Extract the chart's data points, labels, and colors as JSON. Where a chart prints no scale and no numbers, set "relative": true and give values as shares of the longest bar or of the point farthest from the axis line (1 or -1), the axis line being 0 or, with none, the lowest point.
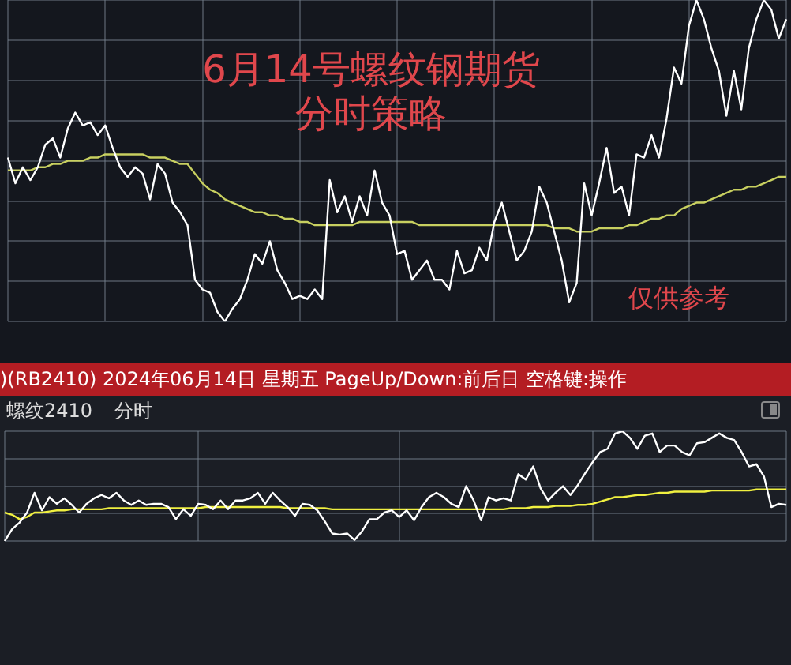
{
  "chart_data": [
    {
      "type": "line",
      "title": "6月14号螺纹钢期货",
      "subtitle": "分时策略",
      "annotations": [
        "仅供参考"
      ],
      "relative": true,
      "grid": true,
      "legend": false,
      "marker": "none",
      "categories": [
        null,
        null,
        null,
        null,
        null,
        null,
        null,
        null,
        null,
        null,
        null,
        null,
        null,
        null,
        null,
        null,
        null,
        null,
        null,
        null,
        null,
        null,
        null,
        null,
        null,
        null,
        null,
        null,
        null,
        null,
        null,
        null,
        null,
        null,
        null,
        null,
        null,
        null,
        null,
        null,
        null,
        null,
        null,
        null,
        null,
        null,
        null,
        null,
        null,
        null,
        null,
        null,
        null,
        null,
        null,
        null,
        null,
        null,
        null,
        null,
        null,
        null,
        null,
        null,
        null,
        null,
        null,
        null,
        null,
        null,
        null,
        null,
        null,
        null,
        null,
        null,
        null,
        null,
        null,
        null,
        null,
        null,
        null,
        null,
        null,
        null,
        null,
        null,
        null,
        null,
        null,
        null,
        null,
        null,
        null,
        null,
        null,
        null,
        null,
        null,
        null,
        null,
        null,
        null,
        null
      ],
      "series": [
        {
          "color": "#ffffff",
          "values": [
            0.51,
            0.43,
            0.48,
            0.44,
            0.48,
            0.55,
            0.57,
            0.51,
            0.6,
            0.65,
            0.61,
            0.62,
            0.58,
            0.61,
            0.54,
            0.48,
            0.45,
            0.48,
            0.46,
            0.38,
            0.49,
            0.46,
            0.37,
            0.34,
            0.3,
            0.13,
            0.1,
            0.09,
            0.03,
            0,
            0.04,
            0.07,
            0.13,
            0.21,
            0.18,
            0.25,
            0.16,
            0.12,
            0.07,
            0.08,
            0.07,
            0.1,
            0.07,
            0.44,
            0.34,
            0.39,
            0.31,
            0.39,
            0.33,
            0.47,
            0.37,
            0.33,
            0.21,
            0.22,
            0.13,
            0.16,
            0.19,
            0.13,
            0.13,
            0.1,
            0.22,
            0.15,
            0.16,
            0.23,
            0.19,
            0.31,
            0.37,
            0.28,
            0.19,
            0.22,
            0.28,
            0.42,
            0.37,
            0.28,
            0.19,
            0.06,
            0.12,
            0.43,
            0.33,
            0.43,
            0.54,
            0.4,
            0.42,
            0.33,
            0.52,
            0.51,
            0.58,
            0.51,
            0.63,
            0.79,
            0.74,
            0.92,
            1,
            0.94,
            0.85,
            0.78,
            0.64,
            0.78,
            0.66,
            0.85,
            0.94,
            1,
            0.97,
            0.88,
            0.94
          ]
        },
        {
          "color": "#c8d060",
          "values": [
            0.47,
            0.47,
            0.47,
            0.47,
            0.48,
            0.48,
            0.49,
            0.49,
            0.5,
            0.5,
            0.5,
            0.51,
            0.51,
            0.52,
            0.52,
            0.52,
            0.52,
            0.52,
            0.52,
            0.51,
            0.51,
            0.51,
            0.5,
            0.49,
            0.49,
            0.46,
            0.43,
            0.41,
            0.4,
            0.38,
            0.37,
            0.36,
            0.35,
            0.34,
            0.34,
            0.33,
            0.33,
            0.32,
            0.32,
            0.31,
            0.31,
            0.3,
            0.3,
            0.3,
            0.3,
            0.3,
            0.3,
            0.31,
            0.31,
            0.31,
            0.31,
            0.31,
            0.31,
            0.31,
            0.31,
            0.3,
            0.3,
            0.3,
            0.3,
            0.3,
            0.3,
            0.3,
            0.3,
            0.3,
            0.3,
            0.3,
            0.3,
            0.3,
            0.3,
            0.3,
            0.3,
            0.3,
            0.3,
            0.29,
            0.29,
            0.29,
            0.28,
            0.28,
            0.28,
            0.29,
            0.29,
            0.29,
            0.29,
            0.3,
            0.3,
            0.31,
            0.32,
            0.32,
            0.33,
            0.33,
            0.35,
            0.36,
            0.37,
            0.37,
            0.38,
            0.39,
            0.4,
            0.41,
            0.41,
            0.42,
            0.42,
            0.43,
            0.44,
            0.45,
            0.45
          ]
        }
      ]
    },
    {
      "type": "line",
      "title": "螺纹2410",
      "subtitle": "分时",
      "annotations": [
        ")(RB2410) 2024年06月14日 星期五 PageUp/Down:前后日 空格键:操作"
      ],
      "relative": true,
      "grid": true,
      "legend": false,
      "marker": "none",
      "categories": [
        null,
        null,
        null,
        null,
        null,
        null,
        null,
        null,
        null,
        null,
        null,
        null,
        null,
        null,
        null,
        null,
        null,
        null,
        null,
        null,
        null,
        null,
        null,
        null,
        null,
        null,
        null,
        null,
        null,
        null,
        null,
        null,
        null,
        null,
        null,
        null,
        null,
        null,
        null,
        null,
        null,
        null,
        null,
        null,
        null,
        null,
        null,
        null,
        null,
        null,
        null,
        null,
        null,
        null,
        null,
        null,
        null,
        null,
        null,
        null,
        null,
        null,
        null,
        null,
        null,
        null,
        null,
        null,
        null,
        null,
        null,
        null,
        null,
        null,
        null,
        null,
        null,
        null,
        null,
        null,
        null,
        null,
        null,
        null,
        null,
        null,
        null,
        null,
        null,
        null,
        null,
        null,
        null,
        null,
        null,
        null,
        null,
        null,
        null,
        null,
        null,
        null,
        null,
        null,
        null,
        null
      ],
      "series": [
        {
          "color": "#ffffff",
          "values": [
            0,
            0.11,
            0.17,
            0.26,
            0.44,
            0.28,
            0.4,
            0.34,
            0.39,
            0.33,
            0.26,
            0.34,
            0.39,
            0.42,
            0.39,
            0.44,
            0.37,
            0.33,
            0.37,
            0.33,
            0.34,
            0.34,
            0.31,
            0.2,
            0.29,
            0.23,
            0.34,
            0.33,
            0.29,
            0.37,
            0.29,
            0.37,
            0.37,
            0.39,
            0.44,
            0.34,
            0.44,
            0.37,
            0.31,
            0.23,
            0.34,
            0.33,
            0.28,
            0.18,
            0.07,
            0.06,
            0.07,
            0.01,
            0.09,
            0.2,
            0.2,
            0.26,
            0.28,
            0.22,
            0.28,
            0.19,
            0.31,
            0.4,
            0.44,
            0.4,
            0.34,
            0.31,
            0.5,
            0.37,
            0.19,
            0.4,
            0.37,
            0.39,
            0.37,
            0.61,
            0.56,
            0.68,
            0.48,
            0.37,
            0.44,
            0.5,
            0.42,
            0.51,
            0.62,
            0.72,
            0.81,
            0.84,
            0.98,
            1,
            0.94,
            0.84,
            0.96,
            0.98,
            0.81,
            0.87,
            0.87,
            0.81,
            0.78,
            0.89,
            0.9,
            0.94,
            0.98,
            0.94,
            0.92,
            0.81,
            0.68,
            0.7,
            0.59,
            0.31,
            0.34,
            0.33
          ]
        },
        {
          "color": "#f0f040",
          "values": [
            0.26,
            0.24,
            0.2,
            0.22,
            0.26,
            0.26,
            0.27,
            0.28,
            0.28,
            0.29,
            0.29,
            0.29,
            0.29,
            0.29,
            0.3,
            0.3,
            0.3,
            0.3,
            0.3,
            0.3,
            0.3,
            0.3,
            0.3,
            0.3,
            0.3,
            0.3,
            0.3,
            0.31,
            0.31,
            0.31,
            0.31,
            0.31,
            0.31,
            0.31,
            0.31,
            0.31,
            0.31,
            0.31,
            0.3,
            0.3,
            0.3,
            0.3,
            0.3,
            0.3,
            0.29,
            0.29,
            0.29,
            0.29,
            0.29,
            0.29,
            0.29,
            0.29,
            0.29,
            0.29,
            0.29,
            0.29,
            0.29,
            0.29,
            0.29,
            0.29,
            0.29,
            0.29,
            0.29,
            0.29,
            0.29,
            0.29,
            0.29,
            0.29,
            0.3,
            0.3,
            0.3,
            0.31,
            0.31,
            0.31,
            0.32,
            0.32,
            0.32,
            0.33,
            0.33,
            0.34,
            0.36,
            0.38,
            0.4,
            0.4,
            0.41,
            0.42,
            0.42,
            0.43,
            0.44,
            0.44,
            0.45,
            0.45,
            0.45,
            0.45,
            0.45,
            0.46,
            0.46,
            0.46,
            0.46,
            0.46,
            0.46,
            0.47,
            0.47,
            0.47,
            0.47,
            0.47
          ]
        }
      ]
    }
  ]
}
